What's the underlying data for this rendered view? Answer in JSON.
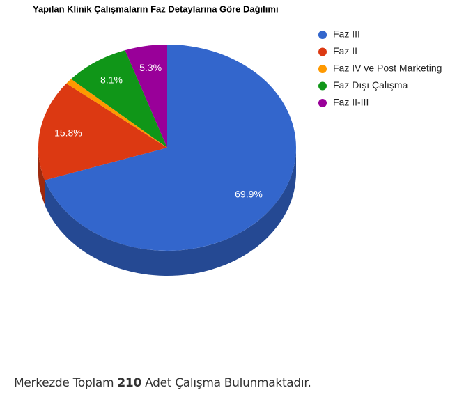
{
  "chart_data": {
    "type": "pie3d",
    "title": "Yapılan Klinik Çalışmaların Faz Detaylarına Göre Dağılımı",
    "categories": [
      "Faz III",
      "Faz II",
      "Faz IV ve Post Marketing",
      "Faz Dışı Çalışma",
      "Faz II-III"
    ],
    "values": [
      69.9,
      15.8,
      0.9,
      8.1,
      5.3
    ],
    "value_labels": [
      "69.9%",
      "15.8%",
      null,
      "8.1%",
      "5.3%"
    ],
    "colors": [
      "#3366cc",
      "#dc3912",
      "#ff9900",
      "#109618",
      "#990099"
    ],
    "legend": "right"
  },
  "footer": {
    "prefix": "Merkezde Toplam ",
    "count": 210,
    "suffix": " Adet Çalışma Bulunmaktadır."
  }
}
